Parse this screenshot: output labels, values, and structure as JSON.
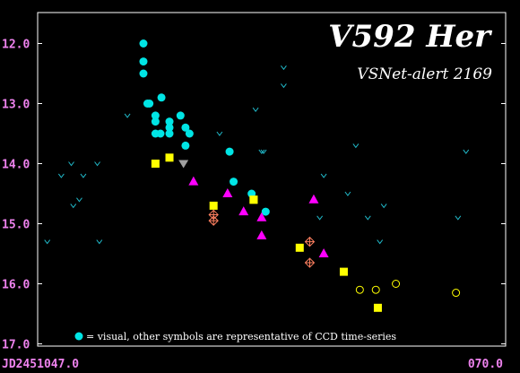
{
  "chart_data": {
    "type": "scatter",
    "title": "V592 Her",
    "subtitle": "VSNet-alert 2169",
    "x_start_label": "JD2451047.0",
    "x_end_label": "070.0",
    "xlim": [
      47.0,
      70.0
    ],
    "ylim": [
      17.0,
      11.5
    ],
    "y_inverted": true,
    "yticks": [
      12.0,
      13.0,
      14.0,
      15.0,
      16.0,
      17.0
    ],
    "ytick_labels": [
      "12.0",
      "13.0",
      "14.0",
      "15.0",
      "16.0",
      "17.0"
    ],
    "legend_text": "= visual, other symbols are representative of CCD time-series",
    "colors": {
      "visual": "#00e5e5",
      "upper_limit": "#20b8c8",
      "yellow_square": "#ffff00",
      "magenta_triangle": "#ff00ff",
      "gray_triangle": "#a0a0a0",
      "orange_crossed": "#ff8060",
      "yellow_circle": "#ffff00",
      "frame": "#ffffff",
      "tick_labels": "#ee82ee"
    },
    "series": [
      {
        "marker": "filled-circle",
        "color_key": "visual",
        "points": [
          [
            52.1,
            12.0
          ],
          [
            52.1,
            12.3
          ],
          [
            52.1,
            12.5
          ],
          [
            52.3,
            13.0
          ],
          [
            52.4,
            13.0
          ],
          [
            52.7,
            13.2
          ],
          [
            52.7,
            13.3
          ],
          [
            52.7,
            13.5
          ],
          [
            52.95,
            13.5
          ],
          [
            53.0,
            12.9
          ],
          [
            53.4,
            13.3
          ],
          [
            53.4,
            13.4
          ],
          [
            53.4,
            13.5
          ],
          [
            53.95,
            13.2
          ],
          [
            54.2,
            13.4
          ],
          [
            54.2,
            13.7
          ],
          [
            54.4,
            13.5
          ],
          [
            56.4,
            13.8
          ],
          [
            56.6,
            14.3
          ],
          [
            57.5,
            14.5
          ],
          [
            58.2,
            14.8
          ]
        ]
      },
      {
        "marker": "upper-limit-v",
        "color_key": "upper_limit",
        "points": [
          [
            47.3,
            15.3
          ],
          [
            48.0,
            14.2
          ],
          [
            48.5,
            14.0
          ],
          [
            48.6,
            14.7
          ],
          [
            48.9,
            14.6
          ],
          [
            49.1,
            14.2
          ],
          [
            49.8,
            14.0
          ],
          [
            49.9,
            15.3
          ],
          [
            51.3,
            13.2
          ],
          [
            55.9,
            13.5
          ],
          [
            57.7,
            13.1
          ],
          [
            58.0,
            13.8
          ],
          [
            58.1,
            13.8
          ],
          [
            59.1,
            12.4
          ],
          [
            59.1,
            12.7
          ],
          [
            60.9,
            14.9
          ],
          [
            61.1,
            14.2
          ],
          [
            62.3,
            14.5
          ],
          [
            62.7,
            13.7
          ],
          [
            63.3,
            14.9
          ],
          [
            63.9,
            15.3
          ],
          [
            64.1,
            14.7
          ],
          [
            67.8,
            14.9
          ],
          [
            68.2,
            13.8
          ]
        ]
      },
      {
        "marker": "filled-square",
        "color_key": "yellow_square",
        "points": [
          [
            52.7,
            14.0
          ],
          [
            53.4,
            13.9
          ],
          [
            55.6,
            14.7
          ],
          [
            57.6,
            14.6
          ],
          [
            59.9,
            15.4
          ],
          [
            62.1,
            15.8
          ],
          [
            63.8,
            16.4
          ]
        ]
      },
      {
        "marker": "filled-triangle-up",
        "color_key": "magenta_triangle",
        "points": [
          [
            54.6,
            14.3
          ],
          [
            56.3,
            14.5
          ],
          [
            57.1,
            14.8
          ],
          [
            58.0,
            14.9
          ],
          [
            58.0,
            15.2
          ],
          [
            60.6,
            14.6
          ],
          [
            61.1,
            15.5
          ]
        ]
      },
      {
        "marker": "filled-triangle-down",
        "color_key": "gray_triangle",
        "points": [
          [
            54.1,
            14.0
          ]
        ]
      },
      {
        "marker": "crossed-diamond",
        "color_key": "orange_crossed",
        "points": [
          [
            55.6,
            14.85
          ],
          [
            55.6,
            14.95
          ],
          [
            60.4,
            15.3
          ],
          [
            60.4,
            15.65
          ]
        ]
      },
      {
        "marker": "crossed-square",
        "color_key": "yellow_square",
        "points": [
          [
            57.6,
            14.6
          ]
        ]
      },
      {
        "marker": "open-circle",
        "color_key": "yellow_circle",
        "points": [
          [
            62.9,
            16.1
          ],
          [
            63.7,
            16.1
          ],
          [
            64.7,
            16.0
          ],
          [
            67.7,
            16.15
          ]
        ]
      }
    ]
  }
}
